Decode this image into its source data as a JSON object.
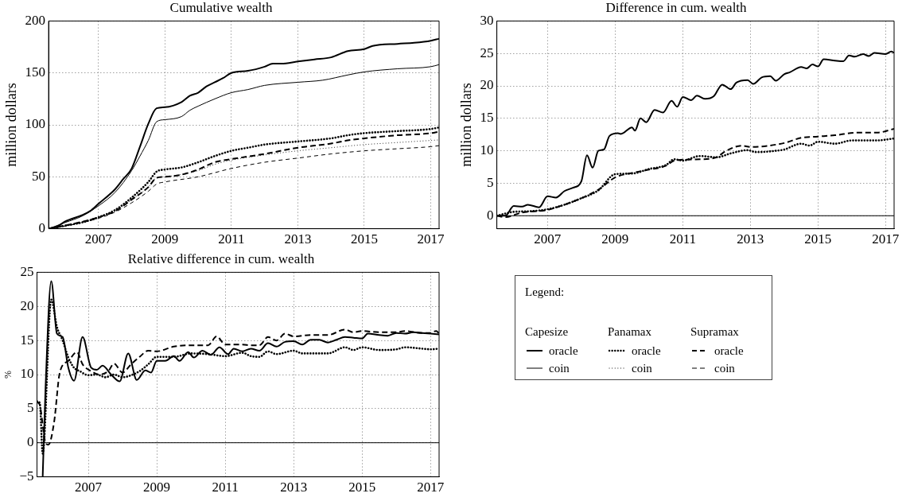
{
  "chart_data": [
    {
      "type": "line",
      "title": "Cumulative wealth",
      "ylabel": "million dollars",
      "xlim": [
        "2005-07",
        "2017-04"
      ],
      "xticks": [
        "2007",
        "2009",
        "2011",
        "2013",
        "2015",
        "2017"
      ],
      "ylim": [
        0,
        200
      ],
      "yticks": [
        0,
        50,
        100,
        150,
        200
      ],
      "grid": true,
      "series": [
        {
          "color": "#000000",
          "line_style": "solid",
          "x": [
            "2005-07",
            "2005-10",
            "2006-01",
            "2006-07",
            "2006-10",
            "2007-01",
            "2007-07",
            "2007-10",
            "2008-01",
            "2008-04",
            "2008-07",
            "2008-10",
            "2009-01",
            "2009-07",
            "2009-10",
            "2010-01",
            "2010-04",
            "2010-07",
            "2010-10",
            "2011-01",
            "2011-07",
            "2012-01",
            "2012-04",
            "2012-07",
            "2013-01",
            "2013-07",
            "2014-01",
            "2014-07",
            "2015-01",
            "2015-04",
            "2016-01",
            "2016-07",
            "2017-01",
            "2017-04"
          ],
          "values": [
            0,
            2,
            7,
            13,
            17,
            24,
            38,
            48,
            58,
            79,
            101,
            116,
            117,
            122,
            128,
            131,
            137,
            141,
            145,
            150,
            152,
            156,
            159,
            159,
            161,
            163,
            165,
            171,
            173,
            176,
            178,
            179,
            181,
            183
          ]
        },
        {
          "color": "#000000",
          "line_style": "solid",
          "x": [
            "2005-07",
            "2006-01",
            "2006-07",
            "2007-01",
            "2007-07",
            "2008-01",
            "2008-04",
            "2008-07",
            "2008-10",
            "2009-01",
            "2009-07",
            "2009-10",
            "2010-01",
            "2010-07",
            "2011-01",
            "2011-07",
            "2012-01",
            "2013-01",
            "2013-10",
            "2014-07",
            "2015-01",
            "2016-01",
            "2017-01",
            "2017-04"
          ],
          "values": [
            0,
            6,
            12,
            22,
            35,
            56,
            70,
            85,
            103,
            105,
            108,
            114,
            118,
            125,
            131,
            134,
            138,
            141,
            143,
            148,
            151,
            154,
            156,
            158
          ]
        },
        {
          "color": "#000000",
          "line_style": "dotted",
          "x": [
            "2005-07",
            "2006-01",
            "2006-07",
            "2007-01",
            "2007-07",
            "2008-01",
            "2008-07",
            "2008-10",
            "2009-01",
            "2009-07",
            "2010-01",
            "2010-07",
            "2011-01",
            "2011-07",
            "2012-01",
            "2013-01",
            "2014-01",
            "2014-07",
            "2015-01",
            "2016-01",
            "2017-01",
            "2017-04"
          ],
          "values": [
            0,
            3,
            6,
            11,
            18,
            30,
            45,
            55,
            57,
            59,
            64,
            70,
            75,
            78,
            81,
            84,
            87,
            90,
            92,
            94,
            96,
            97.5
          ]
        },
        {
          "color": "#000000",
          "line_style": "dotted",
          "x": [
            "2005-07",
            "2006-01",
            "2007-01",
            "2007-07",
            "2008-01",
            "2008-07",
            "2008-10",
            "2009-01",
            "2010-01",
            "2010-07",
            "2011-01",
            "2012-01",
            "2013-01",
            "2014-01",
            "2015-01",
            "2016-01",
            "2017-01",
            "2017-04"
          ],
          "values": [
            0,
            3,
            11,
            17,
            28,
            40,
            49,
            50,
            56,
            62,
            66,
            71,
            75,
            78,
            81,
            83,
            85,
            85.5
          ]
        },
        {
          "color": "#000000",
          "line_style": "dashed",
          "x": [
            "2005-07",
            "2006-01",
            "2007-01",
            "2007-07",
            "2008-01",
            "2008-07",
            "2008-10",
            "2009-01",
            "2009-07",
            "2010-01",
            "2010-07",
            "2011-01",
            "2012-01",
            "2013-01",
            "2014-01",
            "2014-07",
            "2015-01",
            "2016-01",
            "2017-01",
            "2017-04"
          ],
          "values": [
            0,
            3,
            11,
            17,
            28,
            40,
            49,
            50,
            52,
            57,
            64,
            67,
            72,
            78,
            82,
            85,
            87,
            90,
            92,
            93.5
          ]
        },
        {
          "color": "#000000",
          "line_style": "dashed",
          "x": [
            "2005-07",
            "2006-01",
            "2007-01",
            "2007-07",
            "2008-01",
            "2008-07",
            "2008-10",
            "2009-01",
            "2010-01",
            "2011-01",
            "2012-01",
            "2013-01",
            "2014-01",
            "2015-01",
            "2016-01",
            "2017-01",
            "2017-04"
          ],
          "values": [
            0,
            2.5,
            10,
            16,
            25,
            36,
            43,
            45,
            50,
            58,
            64,
            68,
            72,
            75,
            77,
            79,
            80
          ]
        }
      ]
    },
    {
      "type": "line",
      "title": "Difference in cum. wealth",
      "ylabel": "million dollars",
      "xlim": [
        "2005-07",
        "2017-04"
      ],
      "xticks": [
        "2007",
        "2009",
        "2011",
        "2013",
        "2015",
        "2017"
      ],
      "ylim": [
        -2,
        30
      ],
      "yticks": [
        0,
        5,
        10,
        15,
        20,
        25,
        30
      ],
      "grid": true,
      "ref_lines": [
        {
          "axis": "y",
          "value": 0,
          "color": "#000000",
          "line_style": "solid"
        }
      ],
      "series": [
        {
          "color": "#000000",
          "line_style": "solid",
          "x": [
            "2005-07",
            "2005-10",
            "2006-01",
            "2006-04",
            "2006-06",
            "2006-10",
            "2007-01",
            "2007-04",
            "2007-07",
            "2007-10",
            "2008-01",
            "2008-03",
            "2008-05",
            "2008-07",
            "2008-09",
            "2008-11",
            "2009-02",
            "2009-03",
            "2009-07",
            "2009-08",
            "2009-10",
            "2009-12",
            "2010-03",
            "2010-06",
            "2010-09",
            "2010-11",
            "2011-01",
            "2011-04",
            "2011-06",
            "2011-09",
            "2011-12",
            "2012-03",
            "2012-06",
            "2012-08",
            "2012-12",
            "2013-02",
            "2013-05",
            "2013-08",
            "2013-10",
            "2014-01",
            "2014-03",
            "2014-07",
            "2014-09",
            "2014-11",
            "2015-01",
            "2015-03",
            "2015-07",
            "2015-10",
            "2015-12",
            "2016-02",
            "2016-05",
            "2016-07",
            "2016-09",
            "2017-01",
            "2017-03",
            "2017-04"
          ],
          "values": [
            0,
            0,
            1.5,
            1.4,
            1.7,
            1.3,
            3.0,
            2.8,
            3.8,
            4.3,
            5.3,
            9.3,
            7.4,
            10,
            10.2,
            12.3,
            12.7,
            12.6,
            13.6,
            13.1,
            15,
            14.4,
            16.3,
            15.9,
            17.7,
            16.8,
            18.3,
            17.8,
            18.5,
            18.0,
            18.4,
            20.2,
            19.5,
            20.5,
            20.9,
            20.3,
            21.3,
            21.5,
            20.8,
            21.8,
            22.1,
            22.9,
            22.7,
            23.3,
            23.0,
            24.1,
            23.9,
            23.8,
            24.7,
            24.5,
            24.9,
            24.6,
            25.1,
            24.9,
            25.3,
            25.1
          ]
        },
        {
          "color": "#000000",
          "line_style": "dotted",
          "x": [
            "2005-07",
            "2006-01",
            "2006-07",
            "2007-01",
            "2007-07",
            "2008-01",
            "2008-07",
            "2009-01",
            "2009-07",
            "2010-01",
            "2010-07",
            "2010-10",
            "2011-01",
            "2011-07",
            "2012-01",
            "2012-06",
            "2012-12",
            "2013-03",
            "2013-10",
            "2014-01",
            "2014-07",
            "2014-10",
            "2015-01",
            "2015-07",
            "2016-01",
            "2016-10",
            "2017-04"
          ],
          "values": [
            0,
            0.6,
            0.7,
            1.0,
            1.7,
            2.7,
            3.9,
            6.4,
            6.5,
            7.2,
            7.8,
            8.7,
            8.5,
            9.2,
            9.0,
            9.6,
            10.1,
            9.8,
            10.0,
            10.2,
            11.1,
            10.8,
            11.4,
            11.1,
            11.6,
            11.6,
            11.9
          ]
        },
        {
          "color": "#000000",
          "line_style": "dashed",
          "x": [
            "2005-07",
            "2005-10",
            "2006-04",
            "2007-01",
            "2007-07",
            "2008-01",
            "2008-07",
            "2009-01",
            "2009-07",
            "2010-01",
            "2010-07",
            "2010-10",
            "2011-07",
            "2012-01",
            "2012-04",
            "2012-10",
            "2013-01",
            "2014-01",
            "2014-07",
            "2015-01",
            "2015-07",
            "2016-03",
            "2016-10",
            "2017-04"
          ],
          "values": [
            0,
            -0.2,
            0.5,
            0.9,
            1.7,
            2.7,
            4.0,
            5.9,
            6.6,
            7.1,
            7.7,
            8.5,
            8.7,
            9.0,
            9.9,
            10.8,
            10.6,
            11.2,
            12.0,
            12.2,
            12.4,
            12.8,
            12.8,
            13.4
          ]
        }
      ]
    },
    {
      "type": "line",
      "title": "Relative difference in cum. wealth",
      "ylabel": "%",
      "xlim": [
        "2005-07",
        "2017-04"
      ],
      "xticks": [
        "2007",
        "2009",
        "2011",
        "2013",
        "2015",
        "2017"
      ],
      "ylim": [
        -5,
        25
      ],
      "yticks": [
        {
          "value": -5,
          "label": "−5"
        },
        0,
        5,
        10,
        15,
        20,
        25
      ],
      "grid": true,
      "ref_lines": [
        {
          "axis": "y",
          "value": 0,
          "color": "#000000",
          "line_style": "solid"
        }
      ],
      "series": [
        {
          "color": "#000000",
          "line_style": "solid",
          "x": [
            "2005-09",
            "2005-10",
            "2005-12",
            "2006-02",
            "2006-04",
            "2006-06",
            "2006-08",
            "2006-11",
            "2007-02",
            "2007-04",
            "2007-06",
            "2007-09",
            "2007-12",
            "2008-03",
            "2008-06",
            "2008-09",
            "2008-11",
            "2009-01",
            "2009-04",
            "2009-07",
            "2009-09",
            "2009-12",
            "2010-02",
            "2010-05",
            "2010-08",
            "2010-11",
            "2011-02",
            "2011-04",
            "2011-07",
            "2011-10",
            "2012-01",
            "2012-04",
            "2012-07",
            "2012-10",
            "2013-01",
            "2013-04",
            "2013-07",
            "2013-10",
            "2014-01",
            "2014-04",
            "2014-07",
            "2014-10",
            "2015-01",
            "2015-03",
            "2015-07",
            "2015-10",
            "2016-01",
            "2016-04",
            "2016-07",
            "2016-10",
            "2017-01",
            "2017-04"
          ],
          "values": [
            -5,
            8,
            23.7,
            16,
            15.5,
            11,
            9.1,
            15.5,
            11,
            10.7,
            11.3,
            10,
            9,
            13.1,
            9.2,
            10.6,
            10.3,
            12.0,
            12.0,
            12.7,
            12.0,
            13.3,
            12.5,
            13.5,
            12.9,
            14.0,
            13.0,
            13.8,
            13.4,
            13.8,
            13.5,
            14.6,
            14.1,
            14.8,
            14.9,
            14.4,
            15.1,
            15.1,
            14.7,
            15.1,
            15.5,
            15.4,
            15.3,
            16.0,
            15.8,
            15.7,
            16.1,
            16.0,
            16.2,
            16.1,
            16.0,
            15.9
          ]
        },
        {
          "color": "#000000",
          "line_style": "dotted",
          "x": [
            "2005-07",
            "2005-08",
            "2005-09",
            "2005-12",
            "2006-02",
            "2006-04",
            "2006-06",
            "2006-08",
            "2006-10",
            "2007-01",
            "2007-04",
            "2007-07",
            "2007-10",
            "2008-01",
            "2008-04",
            "2008-07",
            "2008-10",
            "2009-01",
            "2009-07",
            "2010-01",
            "2010-07",
            "2011-01",
            "2011-07",
            "2011-10",
            "2012-01",
            "2012-04",
            "2012-07",
            "2013-01",
            "2013-04",
            "2014-01",
            "2014-07",
            "2014-10",
            "2015-01",
            "2015-07",
            "2016-01",
            "2016-04",
            "2016-10",
            "2017-01",
            "2017-04"
          ],
          "values": [
            6.1,
            5.8,
            -1.6,
            21,
            17,
            15,
            12.5,
            11,
            10.5,
            9.9,
            10,
            9.6,
            10,
            9.6,
            9.9,
            10.5,
            11.5,
            12.6,
            12.6,
            13.1,
            13,
            12.7,
            13.2,
            12.7,
            12.6,
            13.4,
            13.0,
            13.5,
            13.1,
            13.1,
            14.0,
            13.6,
            14.0,
            13.6,
            13.7,
            14.0,
            13.8,
            13.7,
            13.8
          ]
        },
        {
          "color": "#000000",
          "line_style": "dashed",
          "x": [
            "2005-07",
            "2005-08",
            "2005-10",
            "2005-11",
            "2006-01",
            "2006-03",
            "2006-06",
            "2006-09",
            "2006-11",
            "2007-02",
            "2007-05",
            "2007-08",
            "2007-10",
            "2008-01",
            "2008-04",
            "2008-07",
            "2008-10",
            "2009-01",
            "2009-07",
            "2010-01",
            "2010-07",
            "2010-10",
            "2011-01",
            "2011-07",
            "2011-10",
            "2012-01",
            "2012-04",
            "2012-07",
            "2012-10",
            "2013-01",
            "2013-07",
            "2014-01",
            "2014-07",
            "2014-10",
            "2015-01",
            "2015-07",
            "2016-01",
            "2016-04",
            "2016-10",
            "2017-01",
            "2017-03",
            "2017-04"
          ],
          "values": [
            6,
            5.5,
            0,
            -0.3,
            3,
            10.3,
            12,
            13.3,
            11.5,
            10.5,
            10,
            10.5,
            11.6,
            10.3,
            11.5,
            12.6,
            13.5,
            13.4,
            14.1,
            14.3,
            14.3,
            15.6,
            14.4,
            14.4,
            14.3,
            14.3,
            15.5,
            15.0,
            16.0,
            15.6,
            15.8,
            15.8,
            16.6,
            16.2,
            16.4,
            16.2,
            16.2,
            16.4,
            16.1,
            16.1,
            16.4,
            16.0
          ]
        }
      ]
    },
    {
      "type": "other",
      "legend_title": "Legend:",
      "annotations": [
        "Capesize",
        "Panamax",
        "Supramax"
      ],
      "series": [
        {
          "name": "oracle",
          "color": "#000000",
          "line_style": "solid"
        },
        {
          "name": "coin",
          "color": "#000000",
          "line_style": "solid"
        },
        {
          "name": "oracle",
          "color": "#000000",
          "line_style": "dotted"
        },
        {
          "name": "coin",
          "color": "#000000",
          "line_style": "dotted"
        },
        {
          "name": "oracle",
          "color": "#000000",
          "line_style": "dashed"
        },
        {
          "name": "coin",
          "color": "#000000",
          "line_style": "dashed"
        }
      ]
    }
  ]
}
